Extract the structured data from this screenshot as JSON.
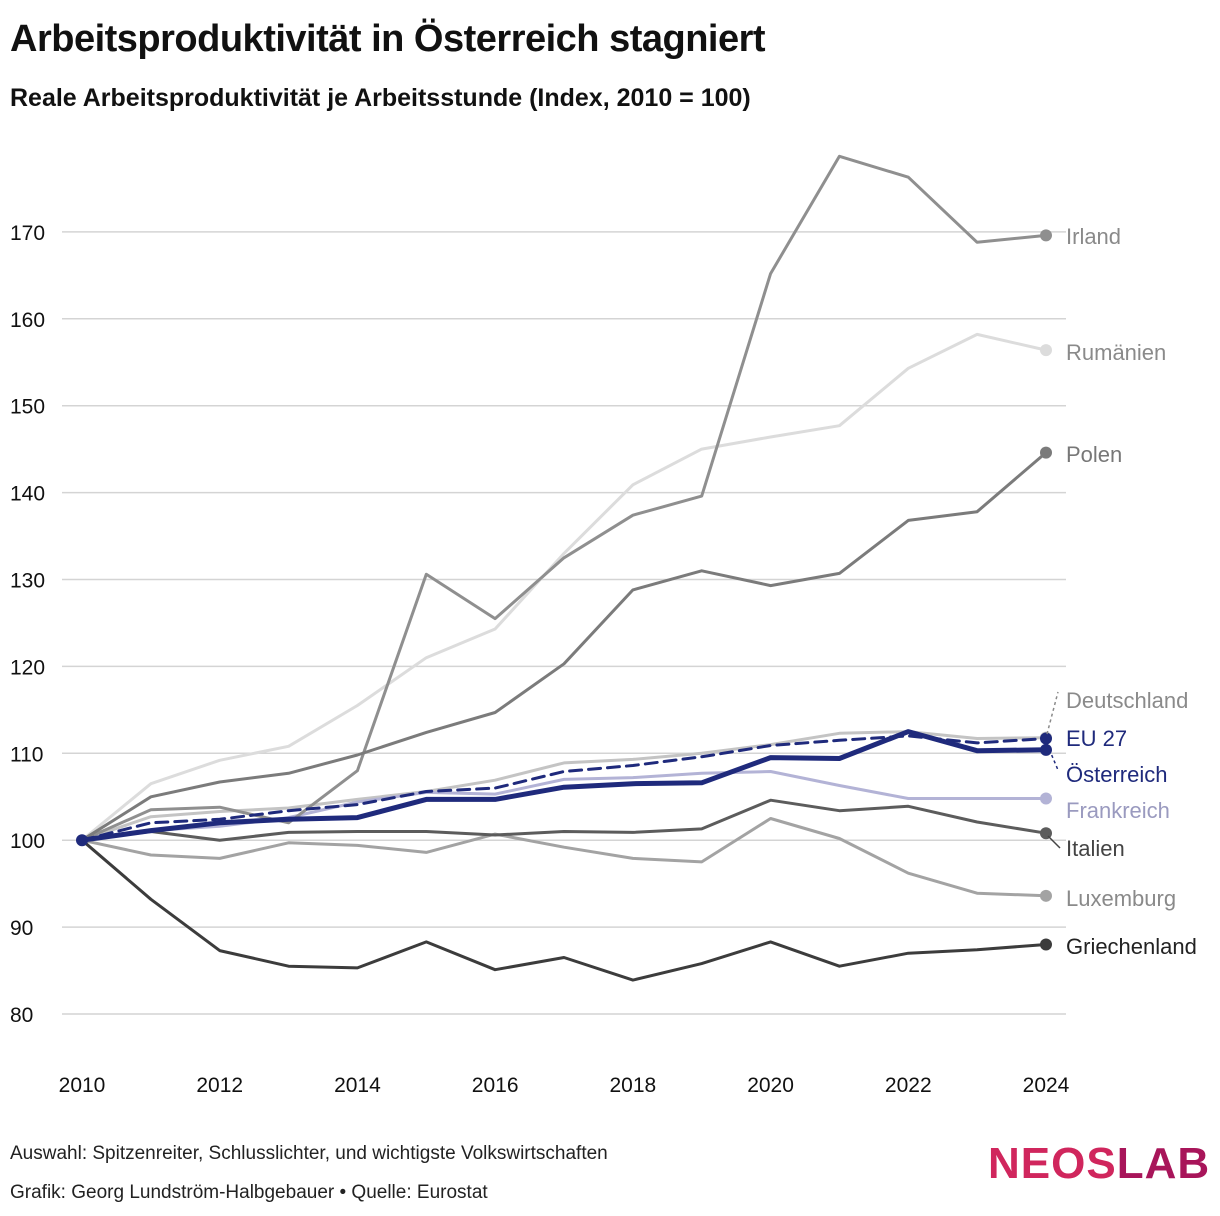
{
  "title": "Arbeitsproduktivität in Österreich stagniert",
  "subtitle": "Reale Arbeitsproduktivität je Arbeitsstunde (Index, 2010 = 100)",
  "footnote": "Auswahl: Spitzenreiter, Schlusslichter, und wichtigste Volkswirtschaften",
  "credit": "Grafik: Georg Lundström-Halbgebauer • Quelle: Eurostat",
  "logo": {
    "part1": "NEOS",
    "part2": "LAB"
  },
  "chart_data": {
    "type": "line",
    "title": "Arbeitsproduktivität in Österreich stagniert",
    "xlabel": "",
    "ylabel": "",
    "ylim": [
      75,
      180
    ],
    "yticks": [
      80,
      90,
      100,
      110,
      120,
      130,
      140,
      150,
      160,
      170
    ],
    "xticks": [
      2010,
      2012,
      2014,
      2016,
      2018,
      2020,
      2022,
      2024
    ],
    "x": [
      2010,
      2011,
      2012,
      2013,
      2014,
      2015,
      2016,
      2017,
      2018,
      2019,
      2020,
      2021,
      2022,
      2023,
      2024
    ],
    "series": [
      {
        "name": "Rumänien",
        "color": "#dcdcdc",
        "width": 3,
        "values": [
          100,
          106.5,
          109.2,
          110.8,
          115.5,
          121,
          124.3,
          133,
          140.9,
          145,
          146.4,
          147.7,
          154.3,
          158.2,
          156.4
        ]
      },
      {
        "name": "Deutschland",
        "color": "#c4c4c4",
        "width": 3,
        "values": [
          100,
          102.7,
          103.3,
          103.7,
          104.7,
          105.6,
          106.9,
          108.9,
          109.3,
          110,
          111,
          112.3,
          112.5,
          111.7,
          111.8
        ]
      },
      {
        "name": "Frankreich",
        "color": "#b3b3d6",
        "width": 3,
        "values": [
          100,
          101.1,
          101.6,
          102.6,
          104.4,
          105.5,
          105.3,
          107,
          107.2,
          107.7,
          107.9,
          106.3,
          104.8,
          104.8,
          104.8
        ]
      },
      {
        "name": "Luxemburg",
        "color": "#a3a3a3",
        "width": 3,
        "values": [
          100,
          98.3,
          97.9,
          99.7,
          99.4,
          98.6,
          100.7,
          99.2,
          97.9,
          97.5,
          102.5,
          100.2,
          96.2,
          93.9,
          93.6
        ]
      },
      {
        "name": "Irland",
        "color": "#8f8f8f",
        "width": 3,
        "values": [
          100,
          103.5,
          103.8,
          102,
          108,
          130.6,
          125.5,
          132.5,
          137.4,
          139.6,
          165.2,
          178.7,
          176.3,
          168.8,
          169.6
        ]
      },
      {
        "name": "Polen",
        "color": "#7b7b7b",
        "width": 3,
        "values": [
          100,
          105,
          106.7,
          107.7,
          109.8,
          112.4,
          114.7,
          120.3,
          128.8,
          131,
          129.3,
          130.7,
          136.8,
          137.8,
          144.6
        ]
      },
      {
        "name": "Italien",
        "color": "#5c5c5c",
        "width": 3,
        "values": [
          100,
          101,
          100,
          100.9,
          101,
          101,
          100.6,
          101,
          100.9,
          101.3,
          104.6,
          103.4,
          103.9,
          102.1,
          100.8
        ]
      },
      {
        "name": "Griechenland",
        "color": "#3c3c3c",
        "width": 3,
        "values": [
          100,
          93.2,
          87.3,
          85.5,
          85.3,
          88.3,
          85.1,
          86.5,
          83.9,
          85.8,
          88.3,
          85.5,
          87,
          87.4,
          88
        ]
      },
      {
        "name": "EU 27",
        "color": "#1f2a7c",
        "width": 3,
        "dashed": true,
        "values": [
          100,
          102,
          102.4,
          103.4,
          104.1,
          105.6,
          106,
          107.9,
          108.6,
          109.6,
          110.9,
          111.5,
          112,
          111.2,
          111.7
        ]
      },
      {
        "name": "Österreich",
        "color": "#1f2a7c",
        "width": 5,
        "values": [
          100,
          101.1,
          102,
          102.4,
          102.6,
          104.7,
          104.7,
          106.1,
          106.5,
          106.6,
          109.5,
          109.4,
          112.5,
          110.3,
          110.4
        ]
      }
    ],
    "labels": [
      {
        "name": "Irland",
        "color": "#8a8a8a"
      },
      {
        "name": "Rumänien",
        "color": "#8a8a8a"
      },
      {
        "name": "Polen",
        "color": "#777777"
      },
      {
        "name": "Deutschland",
        "color": "#8a8a8a"
      },
      {
        "name": "EU 27",
        "color": "#1f2a7c"
      },
      {
        "name": "Österreich",
        "color": "#1f2a7c"
      },
      {
        "name": "Frankreich",
        "color": "#9a9abf"
      },
      {
        "name": "Italien",
        "color": "#444444"
      },
      {
        "name": "Luxemburg",
        "color": "#8a8a8a"
      },
      {
        "name": "Griechenland",
        "color": "#222222"
      }
    ]
  }
}
